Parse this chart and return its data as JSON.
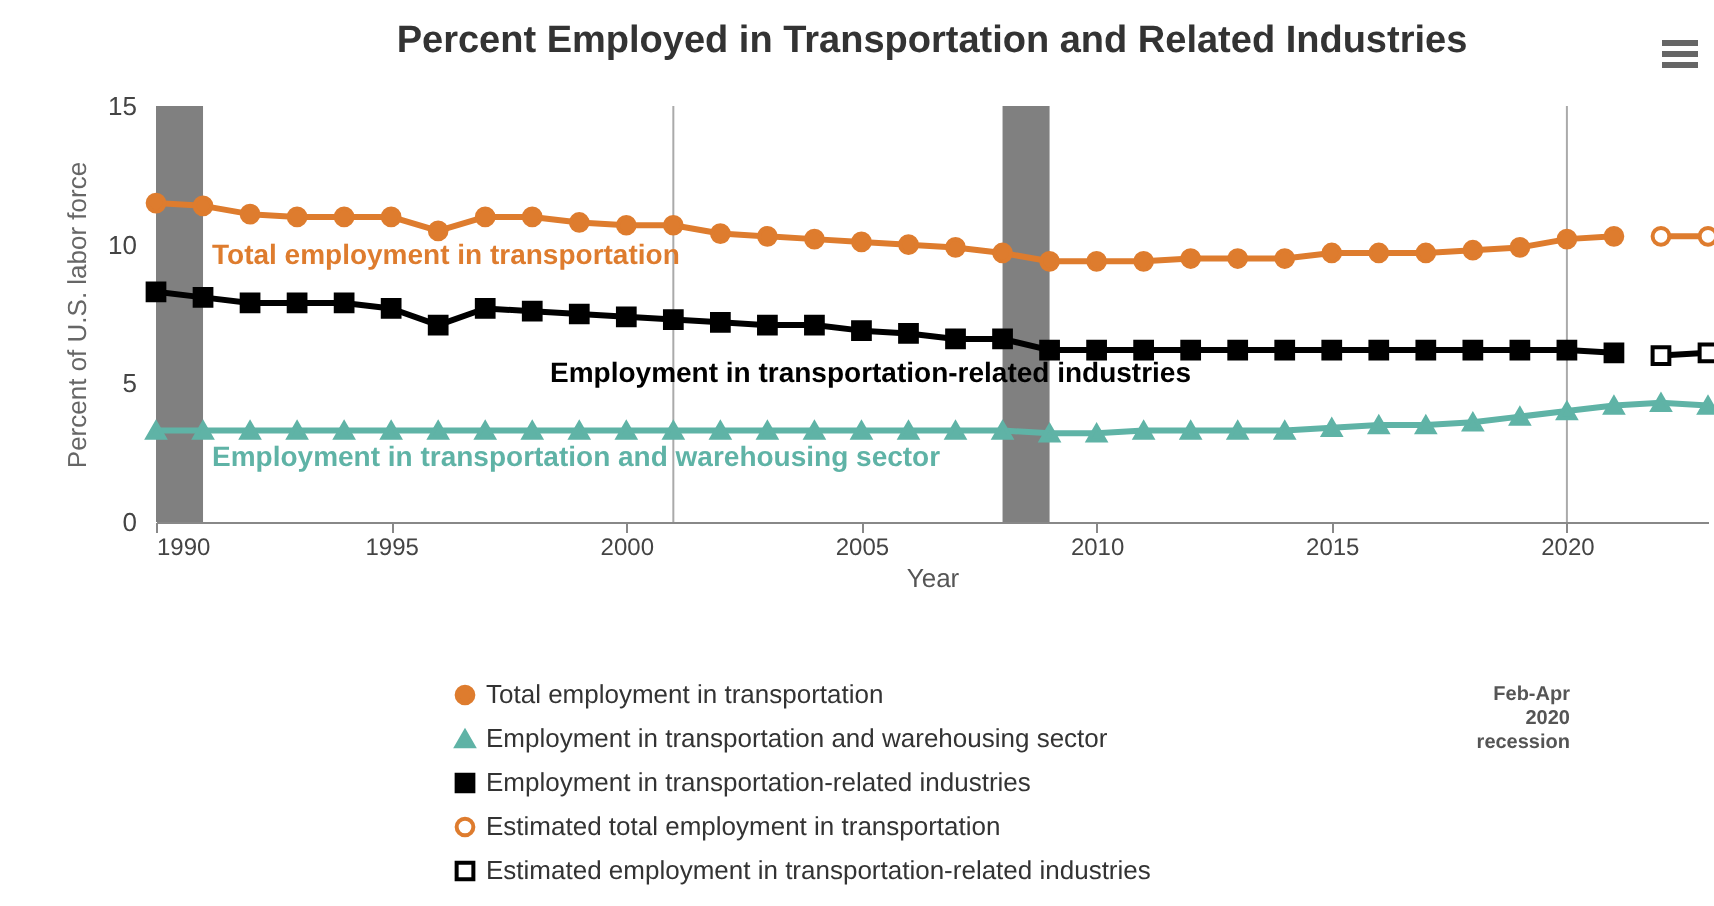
{
  "chart_data": {
    "type": "line",
    "title": "Percent Employed in Transportation and Related Industries",
    "xlabel": "Year",
    "ylabel": "Percent of U.S. labor force",
    "xlim": [
      1990,
      2023
    ],
    "xticks": [
      1990,
      1995,
      2000,
      2005,
      2010,
      2015,
      2020
    ],
    "ylim": [
      0,
      15
    ],
    "yticks": [
      0,
      5,
      10,
      15
    ],
    "legend": "bottom",
    "line_style": "solid",
    "series": [
      {
        "name": "Total employment in transportation",
        "color": "#de7c2e",
        "marker": "circle",
        "x": [
          1990,
          1991,
          1992,
          1993,
          1994,
          1995,
          1996,
          1997,
          1998,
          1999,
          2000,
          2001,
          2002,
          2003,
          2004,
          2005,
          2006,
          2007,
          2008,
          2009,
          2010,
          2011,
          2012,
          2013,
          2014,
          2015,
          2016,
          2017,
          2018,
          2019,
          2020,
          2021
        ],
        "values": [
          11.5,
          11.4,
          11.1,
          11.0,
          11.0,
          11.0,
          10.5,
          11.0,
          11.0,
          10.8,
          10.7,
          10.7,
          10.4,
          10.3,
          10.2,
          10.1,
          10.0,
          9.9,
          9.7,
          9.4,
          9.4,
          9.4,
          9.5,
          9.5,
          9.5,
          9.7,
          9.7,
          9.7,
          9.8,
          9.9,
          10.2,
          10.3
        ]
      },
      {
        "name": "Employment in transportation and warehousing sector",
        "color": "#5fb3a6",
        "marker": "triangle",
        "x": [
          1990,
          1991,
          1992,
          1993,
          1994,
          1995,
          1996,
          1997,
          1998,
          1999,
          2000,
          2001,
          2002,
          2003,
          2004,
          2005,
          2006,
          2007,
          2008,
          2009,
          2010,
          2011,
          2012,
          2013,
          2014,
          2015,
          2016,
          2017,
          2018,
          2019,
          2020,
          2021,
          2022,
          2023
        ],
        "values": [
          3.3,
          3.3,
          3.3,
          3.3,
          3.3,
          3.3,
          3.3,
          3.3,
          3.3,
          3.3,
          3.3,
          3.3,
          3.3,
          3.3,
          3.3,
          3.3,
          3.3,
          3.3,
          3.3,
          3.2,
          3.2,
          3.3,
          3.3,
          3.3,
          3.3,
          3.4,
          3.5,
          3.5,
          3.6,
          3.8,
          4.0,
          4.2,
          4.3,
          4.2
        ]
      },
      {
        "name": "Employment in transportation-related industries",
        "color": "#000000",
        "marker": "square",
        "x": [
          1990,
          1991,
          1992,
          1993,
          1994,
          1995,
          1996,
          1997,
          1998,
          1999,
          2000,
          2001,
          2002,
          2003,
          2004,
          2005,
          2006,
          2007,
          2008,
          2009,
          2010,
          2011,
          2012,
          2013,
          2014,
          2015,
          2016,
          2017,
          2018,
          2019,
          2020,
          2021
        ],
        "values": [
          8.3,
          8.1,
          7.9,
          7.9,
          7.9,
          7.7,
          7.1,
          7.7,
          7.6,
          7.5,
          7.4,
          7.3,
          7.2,
          7.1,
          7.1,
          6.9,
          6.8,
          6.6,
          6.6,
          6.2,
          6.2,
          6.2,
          6.2,
          6.2,
          6.2,
          6.2,
          6.2,
          6.2,
          6.2,
          6.2,
          6.2,
          6.1
        ]
      },
      {
        "name": "Estimated total employment in transportation",
        "color": "#de7c2e",
        "marker": "circle",
        "x": [
          2022,
          2023
        ],
        "values": [
          10.3,
          10.3
        ]
      },
      {
        "name": "Estimated employment in transportation-related industries",
        "color": "#000000",
        "marker": "square",
        "x": [
          2022,
          2023
        ],
        "values": [
          6.0,
          6.1
        ]
      }
    ],
    "bands": [
      {
        "axis": "x",
        "from": 1990,
        "to": 1991,
        "color": "#808080"
      },
      {
        "axis": "x",
        "from": 2008,
        "to": 2009,
        "color": "#808080"
      }
    ],
    "ref_lines": [
      {
        "axis": "x",
        "value": 2001,
        "color": "#aaaaaa"
      },
      {
        "axis": "x",
        "value": 2020,
        "color": "#aaaaaa"
      }
    ],
    "annotations": [
      "Feb-Apr 2020 recession"
    ]
  }
}
